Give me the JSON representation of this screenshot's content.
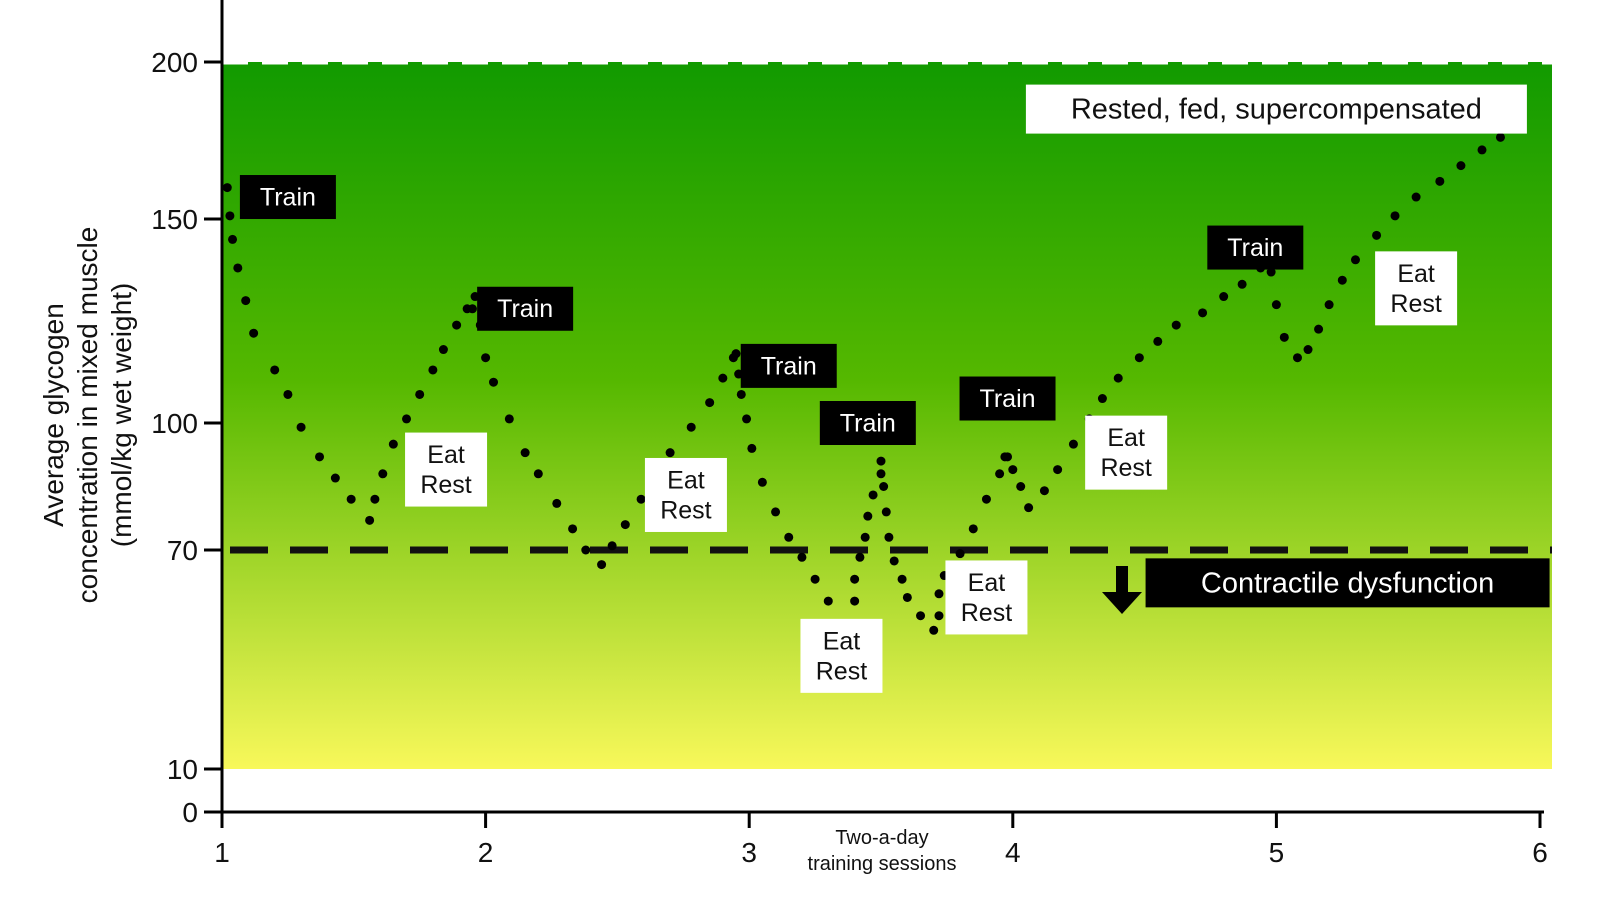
{
  "chart_data": {
    "type": "scatter",
    "title": "",
    "ylabel_lines": [
      "Average glycogen",
      "concentration in mixed muscle",
      "(mmol/kg wet weight)"
    ],
    "xnote_lines": [
      "Two-a-day",
      "training sessions"
    ],
    "x_ticks": [
      "1",
      "2",
      "3",
      "4",
      "5",
      "6"
    ],
    "y_ticks": [
      {
        "value": 0,
        "label": "0"
      },
      {
        "value": 10,
        "label": "10"
      },
      {
        "value": 70,
        "label": "70"
      },
      {
        "value": 100,
        "label": "100"
      },
      {
        "value": 150,
        "label": "150"
      },
      {
        "value": 200,
        "label": "200"
      }
    ],
    "xlim": [
      1,
      6
    ],
    "ylim": [
      0,
      200
    ],
    "y_scale_note": "non-linear axis with breaks at 10, 70, 100, 150, 200",
    "background_band": {
      "from": 10,
      "to": 200,
      "top_color": "#119a00",
      "bottom_color": "#f8f85a"
    },
    "threshold": {
      "value": 70,
      "style": "dashed",
      "label": "Contractile dysfunction",
      "arrow": "down"
    },
    "colors": {
      "points": "#000000",
      "threshold": "#111111",
      "dark_box": "#000000",
      "light_box": "#ffffff"
    },
    "points": [
      {
        "x": 1.02,
        "y": 160
      },
      {
        "x": 1.03,
        "y": 151
      },
      {
        "x": 1.04,
        "y": 145
      },
      {
        "x": 1.06,
        "y": 138
      },
      {
        "x": 1.09,
        "y": 130
      },
      {
        "x": 1.12,
        "y": 122
      },
      {
        "x": 1.2,
        "y": 113
      },
      {
        "x": 1.25,
        "y": 107
      },
      {
        "x": 1.3,
        "y": 99
      },
      {
        "x": 1.37,
        "y": 92
      },
      {
        "x": 1.43,
        "y": 87
      },
      {
        "x": 1.49,
        "y": 82
      },
      {
        "x": 1.56,
        "y": 77
      },
      {
        "x": 1.58,
        "y": 82
      },
      {
        "x": 1.61,
        "y": 88
      },
      {
        "x": 1.65,
        "y": 95
      },
      {
        "x": 1.7,
        "y": 101
      },
      {
        "x": 1.75,
        "y": 107
      },
      {
        "x": 1.8,
        "y": 113
      },
      {
        "x": 1.84,
        "y": 118
      },
      {
        "x": 1.89,
        "y": 124
      },
      {
        "x": 1.93,
        "y": 128
      },
      {
        "x": 1.96,
        "y": 131
      },
      {
        "x": 1.95,
        "y": 128
      },
      {
        "x": 1.98,
        "y": 124
      },
      {
        "x": 2.0,
        "y": 116
      },
      {
        "x": 2.03,
        "y": 110
      },
      {
        "x": 2.09,
        "y": 101
      },
      {
        "x": 2.15,
        "y": 93
      },
      {
        "x": 2.2,
        "y": 88
      },
      {
        "x": 2.27,
        "y": 81
      },
      {
        "x": 2.33,
        "y": 75
      },
      {
        "x": 2.38,
        "y": 70
      },
      {
        "x": 2.44,
        "y": 66
      },
      {
        "x": 2.48,
        "y": 71
      },
      {
        "x": 2.53,
        "y": 76
      },
      {
        "x": 2.59,
        "y": 82
      },
      {
        "x": 2.63,
        "y": 87
      },
      {
        "x": 2.7,
        "y": 93
      },
      {
        "x": 2.78,
        "y": 99
      },
      {
        "x": 2.85,
        "y": 105
      },
      {
        "x": 2.9,
        "y": 111
      },
      {
        "x": 2.94,
        "y": 116
      },
      {
        "x": 2.95,
        "y": 117
      },
      {
        "x": 2.96,
        "y": 112
      },
      {
        "x": 2.97,
        "y": 107
      },
      {
        "x": 2.99,
        "y": 101
      },
      {
        "x": 3.01,
        "y": 94
      },
      {
        "x": 3.05,
        "y": 86
      },
      {
        "x": 3.1,
        "y": 79
      },
      {
        "x": 3.15,
        "y": 73
      },
      {
        "x": 3.2,
        "y": 68
      },
      {
        "x": 3.25,
        "y": 62
      },
      {
        "x": 3.3,
        "y": 56
      },
      {
        "x": 3.38,
        "y": 49
      },
      {
        "x": 3.4,
        "y": 56
      },
      {
        "x": 3.4,
        "y": 62
      },
      {
        "x": 3.42,
        "y": 68
      },
      {
        "x": 3.44,
        "y": 73
      },
      {
        "x": 3.45,
        "y": 78
      },
      {
        "x": 3.47,
        "y": 83
      },
      {
        "x": 3.5,
        "y": 88
      },
      {
        "x": 3.5,
        "y": 91
      },
      {
        "x": 3.51,
        "y": 85
      },
      {
        "x": 3.52,
        "y": 79
      },
      {
        "x": 3.53,
        "y": 73
      },
      {
        "x": 3.55,
        "y": 67
      },
      {
        "x": 3.58,
        "y": 62
      },
      {
        "x": 3.6,
        "y": 57
      },
      {
        "x": 3.65,
        "y": 52
      },
      {
        "x": 3.7,
        "y": 48
      },
      {
        "x": 3.72,
        "y": 52
      },
      {
        "x": 3.72,
        "y": 58
      },
      {
        "x": 3.74,
        "y": 63
      },
      {
        "x": 3.8,
        "y": 69
      },
      {
        "x": 3.85,
        "y": 75
      },
      {
        "x": 3.9,
        "y": 82
      },
      {
        "x": 3.95,
        "y": 88
      },
      {
        "x": 3.97,
        "y": 92
      },
      {
        "x": 3.98,
        "y": 92
      },
      {
        "x": 4.0,
        "y": 89
      },
      {
        "x": 4.03,
        "y": 85
      },
      {
        "x": 4.06,
        "y": 80
      },
      {
        "x": 4.12,
        "y": 84
      },
      {
        "x": 4.17,
        "y": 89
      },
      {
        "x": 4.23,
        "y": 95
      },
      {
        "x": 4.29,
        "y": 101
      },
      {
        "x": 4.34,
        "y": 106
      },
      {
        "x": 4.4,
        "y": 111
      },
      {
        "x": 4.48,
        "y": 116
      },
      {
        "x": 4.55,
        "y": 120
      },
      {
        "x": 4.62,
        "y": 124
      },
      {
        "x": 4.72,
        "y": 127
      },
      {
        "x": 4.8,
        "y": 131
      },
      {
        "x": 4.87,
        "y": 134
      },
      {
        "x": 4.94,
        "y": 138
      },
      {
        "x": 4.97,
        "y": 140
      },
      {
        "x": 4.98,
        "y": 137
      },
      {
        "x": 5.0,
        "y": 129
      },
      {
        "x": 5.03,
        "y": 121
      },
      {
        "x": 5.08,
        "y": 116
      },
      {
        "x": 5.12,
        "y": 118
      },
      {
        "x": 5.16,
        "y": 123
      },
      {
        "x": 5.2,
        "y": 129
      },
      {
        "x": 5.25,
        "y": 135
      },
      {
        "x": 5.3,
        "y": 140
      },
      {
        "x": 5.38,
        "y": 146
      },
      {
        "x": 5.45,
        "y": 151
      },
      {
        "x": 5.53,
        "y": 157
      },
      {
        "x": 5.62,
        "y": 162
      },
      {
        "x": 5.7,
        "y": 167
      },
      {
        "x": 5.78,
        "y": 172
      },
      {
        "x": 5.85,
        "y": 176
      },
      {
        "x": 5.92,
        "y": 180
      }
    ],
    "annotations": [
      {
        "text_lines": [
          "Train"
        ],
        "style": "dark",
        "x": 1.25,
        "y": 157
      },
      {
        "text_lines": [
          "Train"
        ],
        "style": "dark",
        "x": 2.15,
        "y": 128
      },
      {
        "text_lines": [
          "Train"
        ],
        "style": "dark",
        "x": 3.15,
        "y": 114
      },
      {
        "text_lines": [
          "Train"
        ],
        "style": "dark",
        "x": 3.45,
        "y": 100
      },
      {
        "text_lines": [
          "Train"
        ],
        "style": "dark",
        "x": 3.98,
        "y": 106
      },
      {
        "text_lines": [
          "Train"
        ],
        "style": "dark",
        "x": 4.92,
        "y": 143
      },
      {
        "text_lines": [
          "Eat",
          "Rest"
        ],
        "style": "light",
        "x": 1.85,
        "y": 89
      },
      {
        "text_lines": [
          "Eat",
          "Rest"
        ],
        "style": "light",
        "x": 2.76,
        "y": 83
      },
      {
        "text_lines": [
          "Eat",
          "Rest"
        ],
        "style": "light",
        "x": 3.35,
        "y": 41
      },
      {
        "text_lines": [
          "Eat",
          "Rest"
        ],
        "style": "light",
        "x": 3.9,
        "y": 57
      },
      {
        "text_lines": [
          "Eat",
          "Rest"
        ],
        "style": "light",
        "x": 4.43,
        "y": 93
      },
      {
        "text_lines": [
          "Eat",
          "Rest"
        ],
        "style": "light",
        "x": 5.53,
        "y": 133
      },
      {
        "text_lines": [
          "Rested, fed, supercompensated"
        ],
        "style": "light",
        "x": 5.0,
        "y": 185
      },
      {
        "text_lines": [
          "Contractile dysfunction"
        ],
        "style": "dark",
        "x": 5.27,
        "y": 61
      }
    ]
  }
}
